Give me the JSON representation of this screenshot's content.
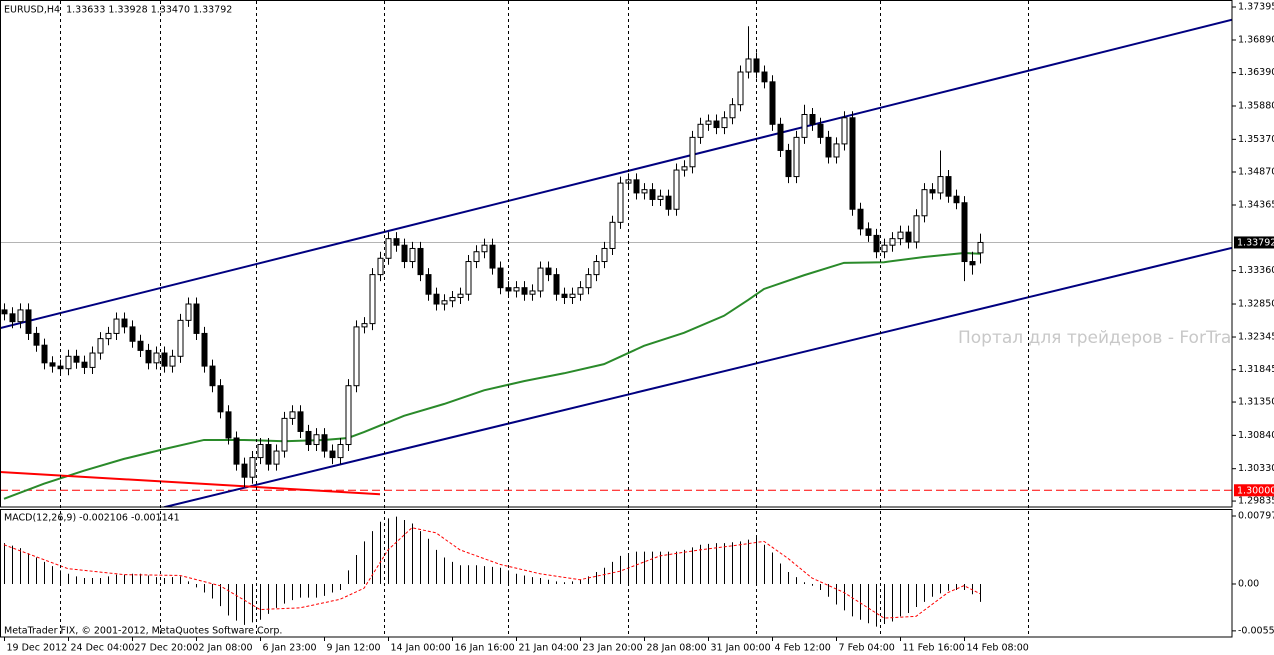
{
  "chart_data": [
    {
      "type": "candlestick",
      "title": "EURUSD,H4  1.33633 1.33928 1.33470 1.33792",
      "color": "#000000",
      "open": [
        1.3276,
        1.327,
        1.3258,
        1.3276,
        1.324,
        1.3222,
        1.3195,
        1.319,
        1.3186,
        1.3205,
        1.3196,
        1.3188,
        1.321,
        1.3232,
        1.324,
        1.3262,
        1.325,
        1.3228,
        1.3214,
        1.3195,
        1.321,
        1.319,
        1.3205,
        1.326,
        1.3285,
        1.324,
        1.319,
        1.316,
        1.312,
        1.308,
        1.304,
        1.302,
        1.305,
        1.307,
        1.304,
        1.306,
        1.311,
        1.312,
        1.309,
        1.307,
        1.3085,
        1.306,
        1.305,
        1.307,
        1.316,
        1.325,
        1.3255,
        1.333,
        1.3355,
        1.3385,
        1.3375,
        1.335,
        1.337,
        1.333,
        1.33,
        1.3285,
        1.329,
        1.3295,
        1.33,
        1.335,
        1.3365,
        1.3375,
        1.334,
        1.331,
        1.3305,
        1.331,
        1.33,
        1.3305,
        1.334,
        1.333,
        1.33,
        1.3295,
        1.33,
        1.331,
        1.333,
        1.335,
        1.337,
        1.341,
        1.347,
        1.3475,
        1.3455,
        1.346,
        1.3445,
        1.345,
        1.343,
        1.349,
        1.3495,
        1.354,
        1.356,
        1.3565,
        1.3555,
        1.357,
        1.359,
        1.364,
        1.366,
        1.364,
        1.3625,
        1.356,
        1.352,
        1.348,
        1.354,
        1.3575,
        1.356,
        1.354,
        1.351,
        1.353,
        1.357,
        1.343,
        1.34,
        1.339,
        1.3365,
        1.3375,
        1.3385,
        1.3395,
        1.338,
        1.342,
        1.346,
        1.3455,
        1.348,
        1.345,
        1.344,
        1.335,
        1.33633
      ],
      "high": [
        1.3286,
        1.328,
        1.3286,
        1.3286,
        1.325,
        1.3232,
        1.3205,
        1.32,
        1.3215,
        1.3215,
        1.3206,
        1.322,
        1.3242,
        1.325,
        1.3272,
        1.3272,
        1.326,
        1.3238,
        1.3224,
        1.322,
        1.322,
        1.3215,
        1.327,
        1.3295,
        1.3295,
        1.325,
        1.32,
        1.317,
        1.313,
        1.309,
        1.305,
        1.306,
        1.308,
        1.308,
        1.307,
        1.312,
        1.313,
        1.313,
        1.31,
        1.3095,
        1.3095,
        1.307,
        1.308,
        1.317,
        1.326,
        1.3265,
        1.334,
        1.3365,
        1.3395,
        1.3395,
        1.3385,
        1.338,
        1.338,
        1.334,
        1.331,
        1.33,
        1.3305,
        1.331,
        1.336,
        1.3375,
        1.3385,
        1.3385,
        1.335,
        1.332,
        1.332,
        1.332,
        1.3315,
        1.335,
        1.335,
        1.334,
        1.331,
        1.331,
        1.332,
        1.334,
        1.336,
        1.338,
        1.342,
        1.348,
        1.3485,
        1.3485,
        1.347,
        1.347,
        1.346,
        1.346,
        1.35,
        1.3505,
        1.355,
        1.357,
        1.3575,
        1.3575,
        1.358,
        1.36,
        1.365,
        1.371,
        1.367,
        1.365,
        1.3635,
        1.357,
        1.353,
        1.355,
        1.359,
        1.3585,
        1.357,
        1.355,
        1.354,
        1.358,
        1.358,
        1.344,
        1.341,
        1.34,
        1.3385,
        1.3395,
        1.3405,
        1.3405,
        1.343,
        1.347,
        1.347,
        1.352,
        1.349,
        1.346,
        1.345,
        1.3365,
        1.33928
      ],
      "low": [
        1.326,
        1.3248,
        1.3248,
        1.323,
        1.3212,
        1.3185,
        1.318,
        1.3176,
        1.3176,
        1.3186,
        1.3178,
        1.3178,
        1.32,
        1.3222,
        1.323,
        1.324,
        1.3218,
        1.3204,
        1.3185,
        1.3185,
        1.318,
        1.318,
        1.3195,
        1.325,
        1.323,
        1.318,
        1.315,
        1.311,
        1.307,
        1.303,
        1.3005,
        1.301,
        1.304,
        1.303,
        1.303,
        1.305,
        1.31,
        1.308,
        1.306,
        1.306,
        1.305,
        1.304,
        1.304,
        1.306,
        1.315,
        1.324,
        1.3245,
        1.332,
        1.3345,
        1.3365,
        1.334,
        1.334,
        1.332,
        1.329,
        1.3275,
        1.3275,
        1.328,
        1.3285,
        1.329,
        1.334,
        1.3355,
        1.333,
        1.33,
        1.3295,
        1.3295,
        1.329,
        1.329,
        1.3295,
        1.332,
        1.329,
        1.3285,
        1.3285,
        1.329,
        1.33,
        1.332,
        1.334,
        1.336,
        1.34,
        1.346,
        1.3445,
        1.3445,
        1.3435,
        1.3435,
        1.342,
        1.342,
        1.348,
        1.3485,
        1.353,
        1.355,
        1.3545,
        1.3545,
        1.356,
        1.358,
        1.363,
        1.363,
        1.3615,
        1.355,
        1.351,
        1.347,
        1.347,
        1.353,
        1.355,
        1.353,
        1.35,
        1.35,
        1.352,
        1.342,
        1.339,
        1.338,
        1.3355,
        1.3355,
        1.3365,
        1.3375,
        1.337,
        1.337,
        1.341,
        1.3445,
        1.3445,
        1.344,
        1.343,
        1.332,
        1.333,
        1.3347
      ],
      "close": [
        1.327,
        1.3258,
        1.3276,
        1.324,
        1.3222,
        1.3195,
        1.319,
        1.3186,
        1.3205,
        1.3196,
        1.3188,
        1.321,
        1.3232,
        1.324,
        1.3262,
        1.325,
        1.3228,
        1.3214,
        1.3195,
        1.321,
        1.319,
        1.3205,
        1.326,
        1.3285,
        1.324,
        1.319,
        1.316,
        1.312,
        1.308,
        1.304,
        1.302,
        1.305,
        1.307,
        1.304,
        1.306,
        1.311,
        1.312,
        1.309,
        1.307,
        1.3085,
        1.306,
        1.305,
        1.307,
        1.316,
        1.325,
        1.3255,
        1.333,
        1.3355,
        1.3385,
        1.3375,
        1.335,
        1.337,
        1.333,
        1.33,
        1.3285,
        1.329,
        1.3295,
        1.33,
        1.335,
        1.3365,
        1.3375,
        1.334,
        1.331,
        1.3305,
        1.331,
        1.33,
        1.3305,
        1.334,
        1.333,
        1.33,
        1.3295,
        1.33,
        1.331,
        1.333,
        1.335,
        1.337,
        1.341,
        1.347,
        1.3475,
        1.3455,
        1.346,
        1.3445,
        1.345,
        1.343,
        1.349,
        1.3495,
        1.354,
        1.356,
        1.3565,
        1.3555,
        1.357,
        1.359,
        1.364,
        1.366,
        1.364,
        1.3625,
        1.356,
        1.352,
        1.348,
        1.354,
        1.3575,
        1.356,
        1.354,
        1.351,
        1.353,
        1.357,
        1.343,
        1.34,
        1.339,
        1.3365,
        1.3375,
        1.3385,
        1.3395,
        1.338,
        1.342,
        1.346,
        1.3455,
        1.348,
        1.345,
        1.344,
        1.335,
        1.3345,
        1.33792
      ],
      "xlim": [
        -0.5,
        153.5
      ],
      "ylim": [
        1.29744,
        1.37502
      ],
      "xticks": [
        {
          "value": 0,
          "label": "19 Dec 2012"
        },
        {
          "value": 8,
          "label": "24 Dec 04:00"
        },
        {
          "value": 16,
          "label": "27 Dec 20:00"
        },
        {
          "value": 24,
          "label": "2 Jan 08:00"
        },
        {
          "value": 32,
          "label": "6 Jan 23:00"
        },
        {
          "value": 40,
          "label": "9 Jan 12:00"
        },
        {
          "value": 48,
          "label": "14 Jan 00:00"
        },
        {
          "value": 56,
          "label": "16 Jan 16:00"
        },
        {
          "value": 64,
          "label": "21 Jan 04:00"
        },
        {
          "value": 72,
          "label": "23 Jan 20:00"
        },
        {
          "value": 80,
          "label": "28 Jan 08:00"
        },
        {
          "value": 88,
          "label": "31 Jan 00:00"
        },
        {
          "value": 96,
          "label": "4 Feb 12:00"
        },
        {
          "value": 104,
          "label": "7 Feb 04:00"
        },
        {
          "value": 112,
          "label": "11 Feb 16:00"
        },
        {
          "value": 120,
          "label": "14 Feb 08:00"
        }
      ],
      "yticks": [
        1.37395,
        {
          "value": 1.3689,
          "label": "1.36890"
        },
        {
          "value": 1.3639,
          "label": "1.36390"
        },
        {
          "value": 1.3588,
          "label": "1.35880"
        },
        {
          "value": 1.3537,
          "label": "1.35370"
        },
        {
          "value": 1.3487,
          "label": "1.34870"
        },
        1.34365,
        {
          "value": 1.3336,
          "label": "1.33360"
        },
        {
          "value": 1.3285,
          "label": "1.32850"
        },
        1.32345,
        1.31845,
        {
          "value": 1.3135,
          "label": "1.31350"
        },
        {
          "value": 1.3084,
          "label": "1.30840"
        },
        {
          "value": 1.3033,
          "label": "1.30330"
        },
        1.29835
      ],
      "xgrid": [
        7,
        19.5,
        31.5,
        47.5,
        63,
        78,
        94,
        109.5,
        128
      ],
      "overlays": [
        {
          "color": "#2a8a2a",
          "x": [
            0,
            5,
            10,
            15,
            20,
            25,
            30,
            35,
            40,
            43,
            45,
            50,
            55,
            60,
            65,
            70,
            75,
            80,
            85,
            90,
            93,
            95,
            100,
            105,
            110,
            115,
            120,
            122
          ],
          "values": [
            1.2987,
            1.301,
            1.303,
            1.3048,
            1.3063,
            1.3077,
            1.3077,
            1.3075,
            1.3077,
            1.308,
            1.3089,
            1.3114,
            1.3132,
            1.3153,
            1.3167,
            1.3179,
            1.3193,
            1.3221,
            1.3241,
            1.3267,
            1.3291,
            1.3308,
            1.3329,
            1.3348,
            1.3349,
            1.3357,
            1.3363,
            1.3362
          ]
        },
        {
          "color": "#000080",
          "x": [
            -0.5,
            153.5
          ],
          "values": [
            1.3248,
            1.372
          ]
        },
        {
          "color": "#000080",
          "x": [
            20,
            153.5
          ],
          "values": [
            1.2974,
            1.3371
          ]
        },
        {
          "color": "#ff0000",
          "x": [
            -0.5,
            47
          ],
          "values": [
            1.3028,
            1.2994
          ]
        }
      ],
      "price_line": 1.33792,
      "level": {
        "value": 1.3,
        "label": "1.30000",
        "color": "#ff0000"
      },
      "watermark": "Портал для трейдеров - ForTrader.ru"
    },
    {
      "type": "macd",
      "title": "MACD(12,26,9) -0.002106 -0.001141",
      "footer": "MetaTrader FIX, © 2001-2012, MetaQuotes Software Corp.",
      "color": "#000000",
      "values": [
        0.0048,
        0.0045,
        0.0042,
        0.0036,
        0.0031,
        0.0026,
        0.0021,
        0.0016,
        0.0012,
        0.0009,
        0.0007,
        0.0007,
        0.0007,
        0.0009,
        0.0011,
        0.0011,
        0.0012,
        0.0012,
        0.001,
        0.0008,
        0.0007,
        0.0008,
        0.0009,
        0.0003,
        -0.0004,
        -0.001,
        -0.0017,
        -0.0026,
        -0.0037,
        -0.0043,
        -0.0048,
        -0.0045,
        -0.0042,
        -0.0035,
        -0.0028,
        -0.0023,
        -0.0019,
        -0.0016,
        -0.0016,
        -0.0016,
        -0.0014,
        -0.001,
        -0.0007,
        0.0016,
        0.0034,
        0.005,
        0.0062,
        0.0073,
        0.0077,
        0.0079,
        0.0075,
        0.0071,
        0.0062,
        0.0053,
        0.004,
        0.0031,
        0.0026,
        0.0022,
        0.0022,
        0.0022,
        0.0021,
        0.002,
        0.0019,
        0.0016,
        0.0012,
        0.001,
        0.0008,
        0.0007,
        0.0005,
        0.0003,
        0.0002,
        0.0003,
        0.0005,
        0.0009,
        0.0014,
        0.0019,
        0.0026,
        0.0033,
        0.0036,
        0.0038,
        0.0038,
        0.0038,
        0.0038,
        0.0038,
        0.0038,
        0.004,
        0.0043,
        0.0046,
        0.0047,
        0.0048,
        0.0048,
        0.0049,
        0.005,
        0.0052,
        0.0054,
        0.0046,
        0.0037,
        0.0024,
        0.0014,
        0.0008,
        0.0002,
        -0.0002,
        -0.0007,
        -0.0015,
        -0.0024,
        -0.0031,
        -0.0038,
        -0.0042,
        -0.0046,
        -0.005,
        -0.0047,
        -0.0044,
        -0.0038,
        -0.0034,
        -0.0027,
        -0.0021,
        -0.0015,
        -0.0011,
        -0.0008,
        -0.0007,
        -0.0007,
        -0.0012,
        -0.002106
      ],
      "signal": {
        "color": "#ff0000",
        "x": [
          0,
          8,
          15,
          22,
          27,
          32,
          37,
          42,
          45,
          48,
          51,
          54,
          57,
          62,
          67,
          72,
          77,
          82,
          87,
          92,
          95,
          98,
          101,
          105,
          110,
          114,
          118,
          120,
          122
        ],
        "values": [
          0.0046,
          0.0018,
          0.0011,
          0.001,
          -0.0002,
          -0.003,
          -0.0028,
          -0.0018,
          -0.0005,
          0.004,
          0.0066,
          0.006,
          0.004,
          0.0023,
          0.0012,
          0.0005,
          0.0015,
          0.0033,
          0.004,
          0.0046,
          0.005,
          0.003,
          0.0007,
          -0.001,
          -0.004,
          -0.0038,
          -0.001,
          -0.0002,
          -0.001141
        ]
      },
      "xlim": [
        -0.5,
        153.5
      ],
      "ylim": [
        -0.00622,
        0.00868
      ],
      "yticks": [
        0.007975,
        {
          "value": 0,
          "label": "0.00"
        },
        -0.0055
      ]
    }
  ]
}
